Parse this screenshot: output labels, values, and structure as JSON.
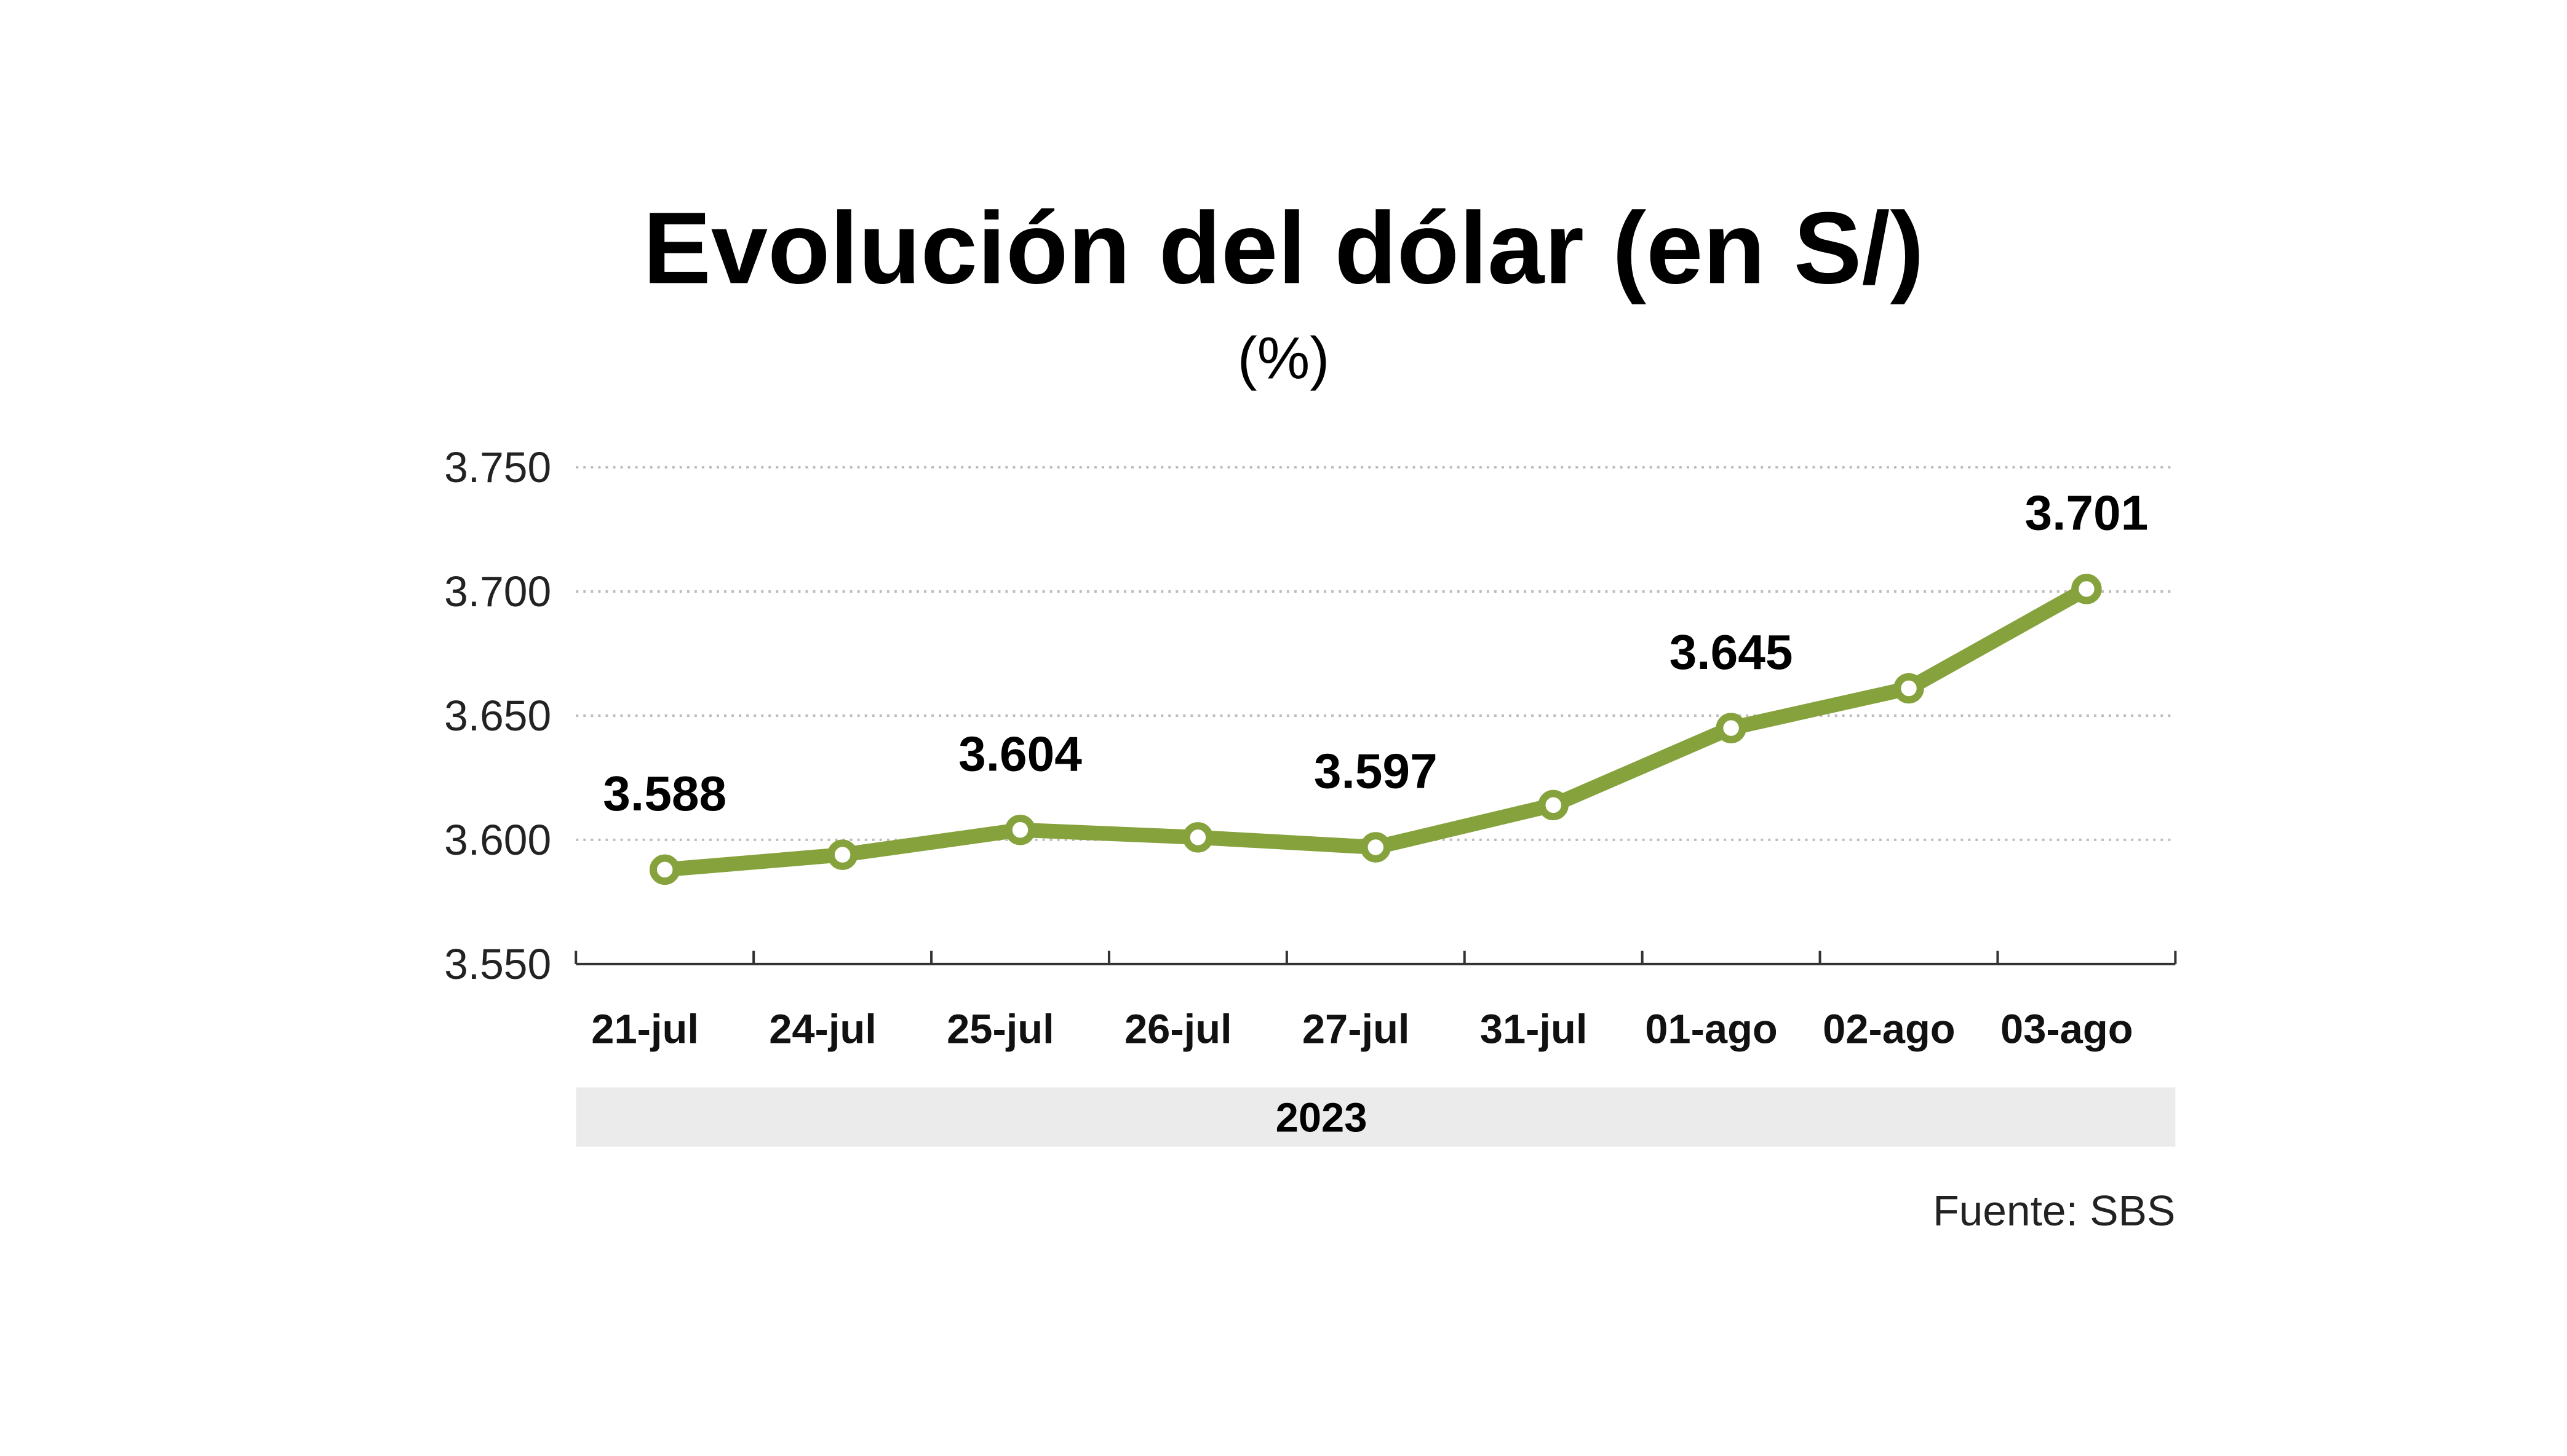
{
  "chart_data": {
    "type": "line",
    "title": "Evolución del dólar (en S/)",
    "subtitle": "(%)",
    "categories": [
      "21-jul",
      "24-jul",
      "25-jul",
      "26-jul",
      "27-jul",
      "31-jul",
      "01-ago",
      "02-ago",
      "03-ago"
    ],
    "values": [
      3.588,
      3.594,
      3.604,
      3.601,
      3.597,
      3.614,
      3.645,
      3.661,
      3.701
    ],
    "data_labels": [
      "3.588",
      null,
      "3.604",
      null,
      "3.597",
      null,
      "3.645",
      null,
      "3.701"
    ],
    "yticks": [
      "3.550",
      "3.600",
      "3.650",
      "3.700",
      "3.750"
    ],
    "ytick_values": [
      3.55,
      3.6,
      3.65,
      3.7,
      3.75
    ],
    "ylim": [
      3.55,
      3.75
    ],
    "xgroup_label": "2023",
    "source": "Fuente: SBS",
    "grid": "horizontal dotted",
    "line_color": "#86a23c",
    "marker_fill": "#ffffff",
    "year_band_color": "#ebebeb"
  }
}
